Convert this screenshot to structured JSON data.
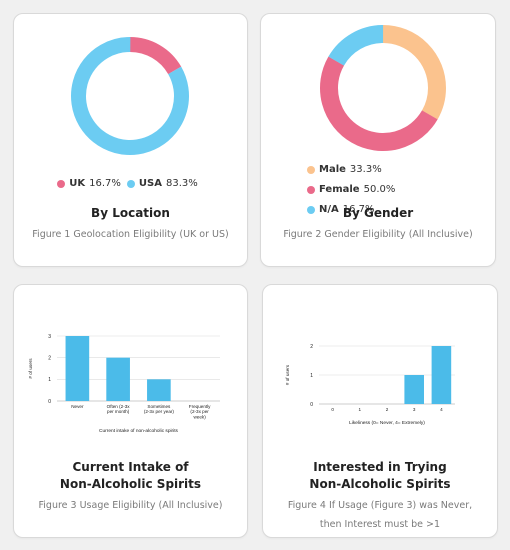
{
  "colors": {
    "pink": "#ea6a8a",
    "blue": "#6cccf2",
    "orange": "#fbc38e",
    "bar": "#4bbbe9",
    "caption_gray": "#7a7a7a"
  },
  "cards": [
    {
      "title_lines": [
        "By Location"
      ],
      "caption_lines": [
        "Figure 1  Geolocation Eligibility (UK or US)"
      ]
    },
    {
      "title_lines": [
        "By Gender"
      ],
      "caption_lines": [
        "Figure 2  Gender Eligibility (All Inclusive)"
      ]
    },
    {
      "title_lines": [
        "Current Intake of",
        "Non-Alcoholic Spirits"
      ],
      "caption_lines": [
        "Figure 3  Usage Eligibility (All Inclusive)"
      ]
    },
    {
      "title_lines": [
        "Interested in Trying",
        "Non-Alcoholic Spirits"
      ],
      "caption_lines": [
        "Figure 4   If Usage (Figure 3) was Never,",
        "then Interest must be >1"
      ]
    }
  ],
  "chart_data": [
    {
      "type": "pie",
      "donut": true,
      "categories": [
        "UK",
        "USA"
      ],
      "values": [
        16.7,
        83.3
      ],
      "value_labels": [
        "16.7%",
        "83.3%"
      ],
      "colors": [
        "#ea6a8a",
        "#6cccf2"
      ],
      "legend": "bottom"
    },
    {
      "type": "pie",
      "donut": true,
      "categories": [
        "Male",
        "Female",
        "N/A"
      ],
      "values": [
        33.3,
        50.0,
        16.7
      ],
      "value_labels": [
        "33.3%",
        "50.0%",
        "16.7%"
      ],
      "colors": [
        "#fbc38e",
        "#ea6a8a",
        "#6cccf2"
      ],
      "legend": "bottom"
    },
    {
      "type": "bar",
      "categories": [
        [
          "Never"
        ],
        [
          "Often (2-3x",
          "per month)"
        ],
        [
          "Sometimes",
          "(2-3x per year)"
        ],
        [
          "Frequently",
          "(2-3x per",
          "week)"
        ]
      ],
      "values": [
        3,
        2,
        1,
        0
      ],
      "xlabel": "Current intake of non-alcoholic spirits",
      "ylabel": "# of users",
      "ylim": [
        0,
        3
      ],
      "yticks": [
        0,
        1,
        2,
        3
      ],
      "grid": true
    },
    {
      "type": "bar",
      "categories": [
        [
          "0"
        ],
        [
          "1"
        ],
        [
          "2"
        ],
        [
          "3"
        ],
        [
          "4"
        ]
      ],
      "values": [
        0,
        0,
        0,
        1,
        2
      ],
      "xlabel": "Likeliness (0= Never, 4= Extremely)",
      "ylabel": "# of users",
      "ylim": [
        0,
        2
      ],
      "yticks": [
        0,
        1,
        2
      ],
      "grid": true
    }
  ]
}
